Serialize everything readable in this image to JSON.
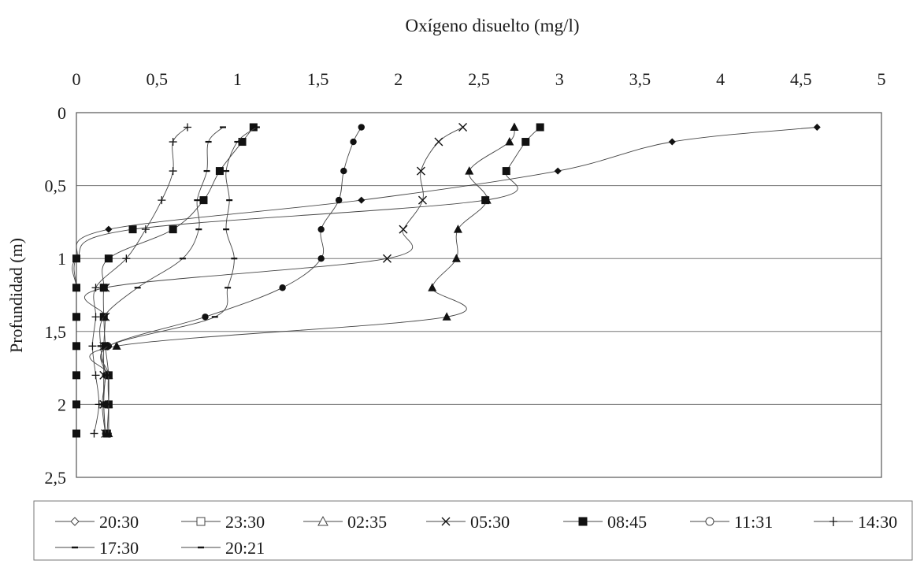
{
  "chart_data": {
    "type": "line",
    "title": "Oxígeno disuelto (mg/l)",
    "xlabel": "Oxígeno disuelto (mg/l)",
    "ylabel": "Profundidad (m)",
    "xlim": [
      0,
      5
    ],
    "ylim": [
      0,
      2.5
    ],
    "y_reversed": true,
    "x_axis_position": "top",
    "x_ticks": [
      "0",
      "0,5",
      "1",
      "1,5",
      "2",
      "2,5",
      "3",
      "3,5",
      "4",
      "4,5",
      "5"
    ],
    "y_ticks": [
      "0",
      "0,5",
      "1",
      "1,5",
      "2",
      "2,5"
    ],
    "grid": "horizontal",
    "legend_position": "bottom",
    "series": [
      {
        "name": "20:30",
        "marker": "diamond",
        "points": [
          [
            4.6,
            0.1
          ],
          [
            3.7,
            0.2
          ],
          [
            2.99,
            0.4
          ],
          [
            1.77,
            0.6
          ],
          [
            0.2,
            0.8
          ],
          [
            0.0,
            1.0
          ],
          [
            0.0,
            1.2
          ],
          [
            0.0,
            1.4
          ],
          [
            0.0,
            1.6
          ],
          [
            0.0,
            1.8
          ],
          [
            0.0,
            2.0
          ],
          [
            0.0,
            2.2
          ]
        ]
      },
      {
        "name": "23:30",
        "marker": "square",
        "points": [
          [
            2.88,
            0.1
          ],
          [
            2.79,
            0.2
          ],
          [
            2.67,
            0.4
          ],
          [
            2.54,
            0.6
          ],
          [
            0.35,
            0.8
          ],
          [
            0.0,
            1.0
          ],
          [
            0.0,
            1.2
          ],
          [
            0.0,
            1.4
          ],
          [
            0.0,
            1.6
          ],
          [
            0.0,
            1.8
          ],
          [
            0.0,
            2.0
          ],
          [
            0.0,
            2.2
          ]
        ]
      },
      {
        "name": "02:35",
        "marker": "triangle",
        "points": [
          [
            2.72,
            0.1
          ],
          [
            2.69,
            0.2
          ],
          [
            2.44,
            0.4
          ],
          [
            2.55,
            0.6
          ],
          [
            2.37,
            0.8
          ],
          [
            2.36,
            1.0
          ],
          [
            2.21,
            1.2
          ],
          [
            2.3,
            1.4
          ],
          [
            0.25,
            1.6
          ],
          [
            0.2,
            1.8
          ],
          [
            0.2,
            2.0
          ],
          [
            0.2,
            2.2
          ]
        ]
      },
      {
        "name": "05:30",
        "marker": "x",
        "points": [
          [
            2.4,
            0.1
          ],
          [
            2.25,
            0.2
          ],
          [
            2.14,
            0.4
          ],
          [
            2.15,
            0.6
          ],
          [
            2.03,
            0.8
          ],
          [
            1.93,
            1.0
          ],
          [
            0.18,
            1.2
          ],
          [
            0.18,
            1.4
          ],
          [
            0.17,
            1.6
          ],
          [
            0.17,
            1.8
          ],
          [
            0.17,
            2.0
          ],
          [
            0.18,
            2.2
          ]
        ]
      },
      {
        "name": "08:45",
        "marker": "filled-square",
        "points": [
          [
            1.1,
            0.1
          ],
          [
            1.03,
            0.2
          ],
          [
            0.89,
            0.4
          ],
          [
            0.79,
            0.6
          ],
          [
            0.6,
            0.8
          ],
          [
            0.2,
            1.0
          ],
          [
            0.17,
            1.2
          ],
          [
            0.17,
            1.4
          ],
          [
            0.18,
            1.6
          ],
          [
            0.2,
            1.8
          ],
          [
            0.2,
            2.0
          ],
          [
            0.19,
            2.2
          ]
        ]
      },
      {
        "name": "11:31",
        "marker": "circle",
        "points": [
          [
            1.77,
            0.1
          ],
          [
            1.72,
            0.2
          ],
          [
            1.66,
            0.4
          ],
          [
            1.63,
            0.6
          ],
          [
            1.52,
            0.8
          ],
          [
            1.52,
            1.0
          ],
          [
            1.28,
            1.2
          ],
          [
            0.8,
            1.4
          ],
          [
            0.2,
            1.6
          ],
          [
            0.18,
            1.8
          ],
          [
            0.17,
            2.0
          ],
          [
            0.18,
            2.2
          ]
        ]
      },
      {
        "name": "14:30",
        "marker": "plus",
        "points": [
          [
            0.69,
            0.1
          ],
          [
            0.6,
            0.2
          ],
          [
            0.6,
            0.4
          ],
          [
            0.53,
            0.6
          ],
          [
            0.43,
            0.8
          ],
          [
            0.31,
            1.0
          ],
          [
            0.12,
            1.2
          ],
          [
            0.12,
            1.4
          ],
          [
            0.1,
            1.6
          ],
          [
            0.12,
            1.8
          ],
          [
            0.14,
            2.0
          ],
          [
            0.11,
            2.2
          ]
        ]
      },
      {
        "name": "17:30",
        "marker": "dash",
        "points": [
          [
            0.91,
            0.1
          ],
          [
            0.82,
            0.2
          ],
          [
            0.81,
            0.4
          ],
          [
            0.75,
            0.6
          ],
          [
            0.76,
            0.8
          ],
          [
            0.66,
            1.0
          ],
          [
            0.38,
            1.2
          ],
          [
            0.17,
            1.4
          ],
          [
            0.15,
            1.6
          ],
          [
            0.18,
            1.8
          ],
          [
            0.16,
            2.0
          ],
          [
            0.18,
            2.2
          ]
        ]
      },
      {
        "name": "20:21",
        "marker": "dash",
        "points": [
          [
            1.12,
            0.1
          ],
          [
            1.0,
            0.2
          ],
          [
            0.93,
            0.4
          ],
          [
            0.95,
            0.6
          ],
          [
            0.93,
            0.8
          ],
          [
            0.98,
            1.0
          ],
          [
            0.94,
            1.2
          ],
          [
            0.86,
            1.4
          ],
          [
            0.2,
            1.6
          ],
          [
            0.2,
            1.8
          ],
          [
            0.2,
            2.0
          ],
          [
            0.2,
            2.2
          ]
        ]
      }
    ]
  }
}
